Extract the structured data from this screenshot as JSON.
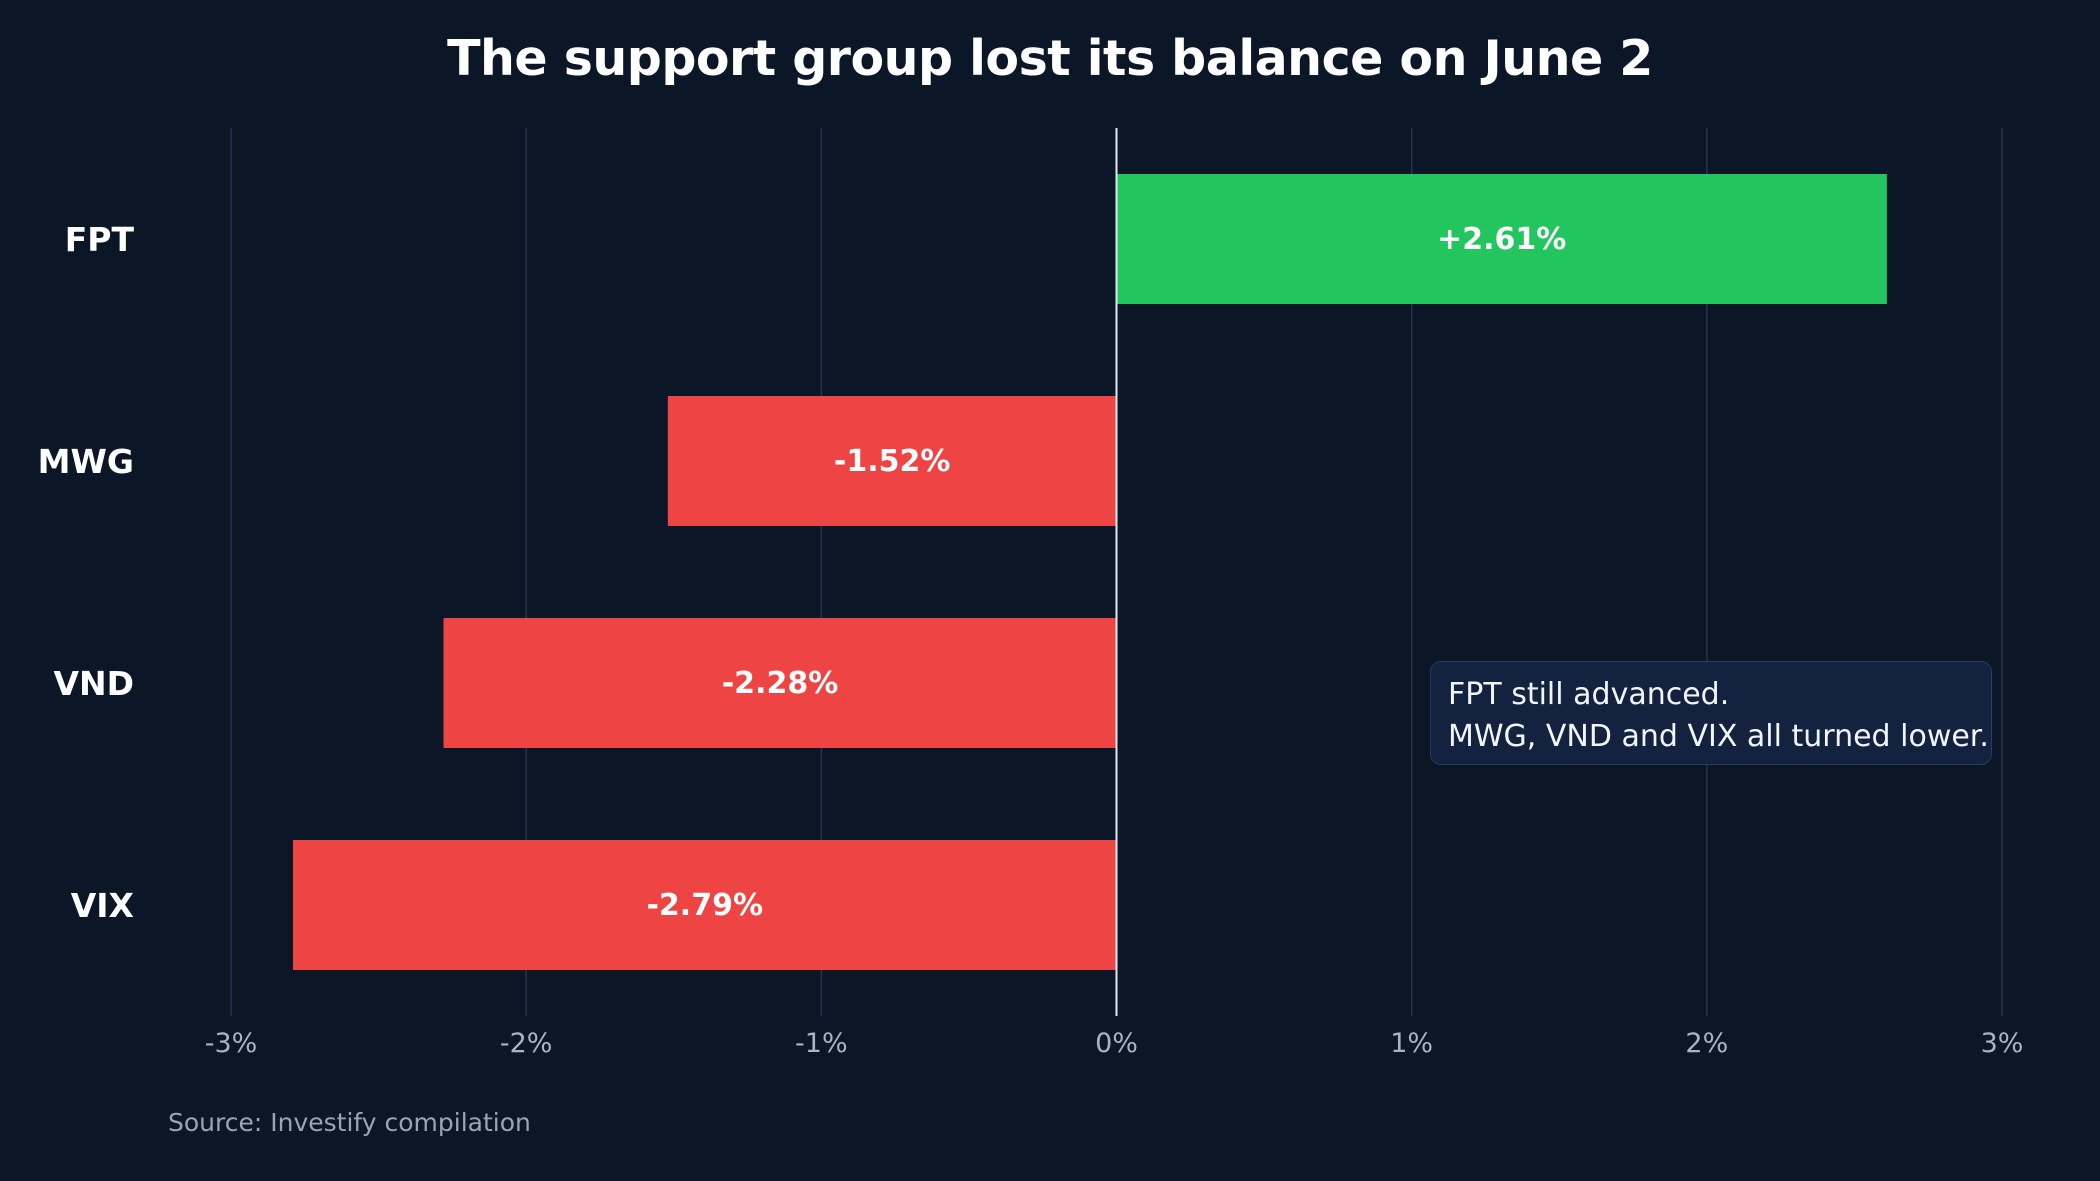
{
  "colors": {
    "background": "#0b1627",
    "positive": "#22c55e",
    "negative": "#ef4444",
    "gridline": "#27344a",
    "zero_line": "#e2e8f0",
    "tick_text": "#aab3c0",
    "category_text": "#ffffff",
    "bar_label_text": "#ffffff"
  },
  "chart_data": {
    "type": "bar",
    "orientation": "horizontal",
    "title": "The support group lost its balance on June 2",
    "categories": [
      "FPT",
      "MWG",
      "VND",
      "VIX"
    ],
    "values": [
      2.61,
      -1.52,
      -2.28,
      -2.79
    ],
    "data_labels": [
      "+2.61%",
      "-1.52%",
      "-2.28%",
      "-2.79%"
    ],
    "xlim": [
      -3,
      3
    ],
    "xticks": [
      -3,
      -2,
      -1,
      0,
      1,
      2,
      3
    ],
    "xtick_labels": [
      "-3%",
      "-2%",
      "-1%",
      "0%",
      "1%",
      "2%",
      "3%"
    ],
    "xlabel": "",
    "ylabel": "",
    "grid": "vertical",
    "legend": "none",
    "annotation": {
      "lines": [
        "FPT still advanced.",
        "MWG, VND and VIX all turned lower."
      ]
    },
    "source": "Source: Investify compilation"
  }
}
